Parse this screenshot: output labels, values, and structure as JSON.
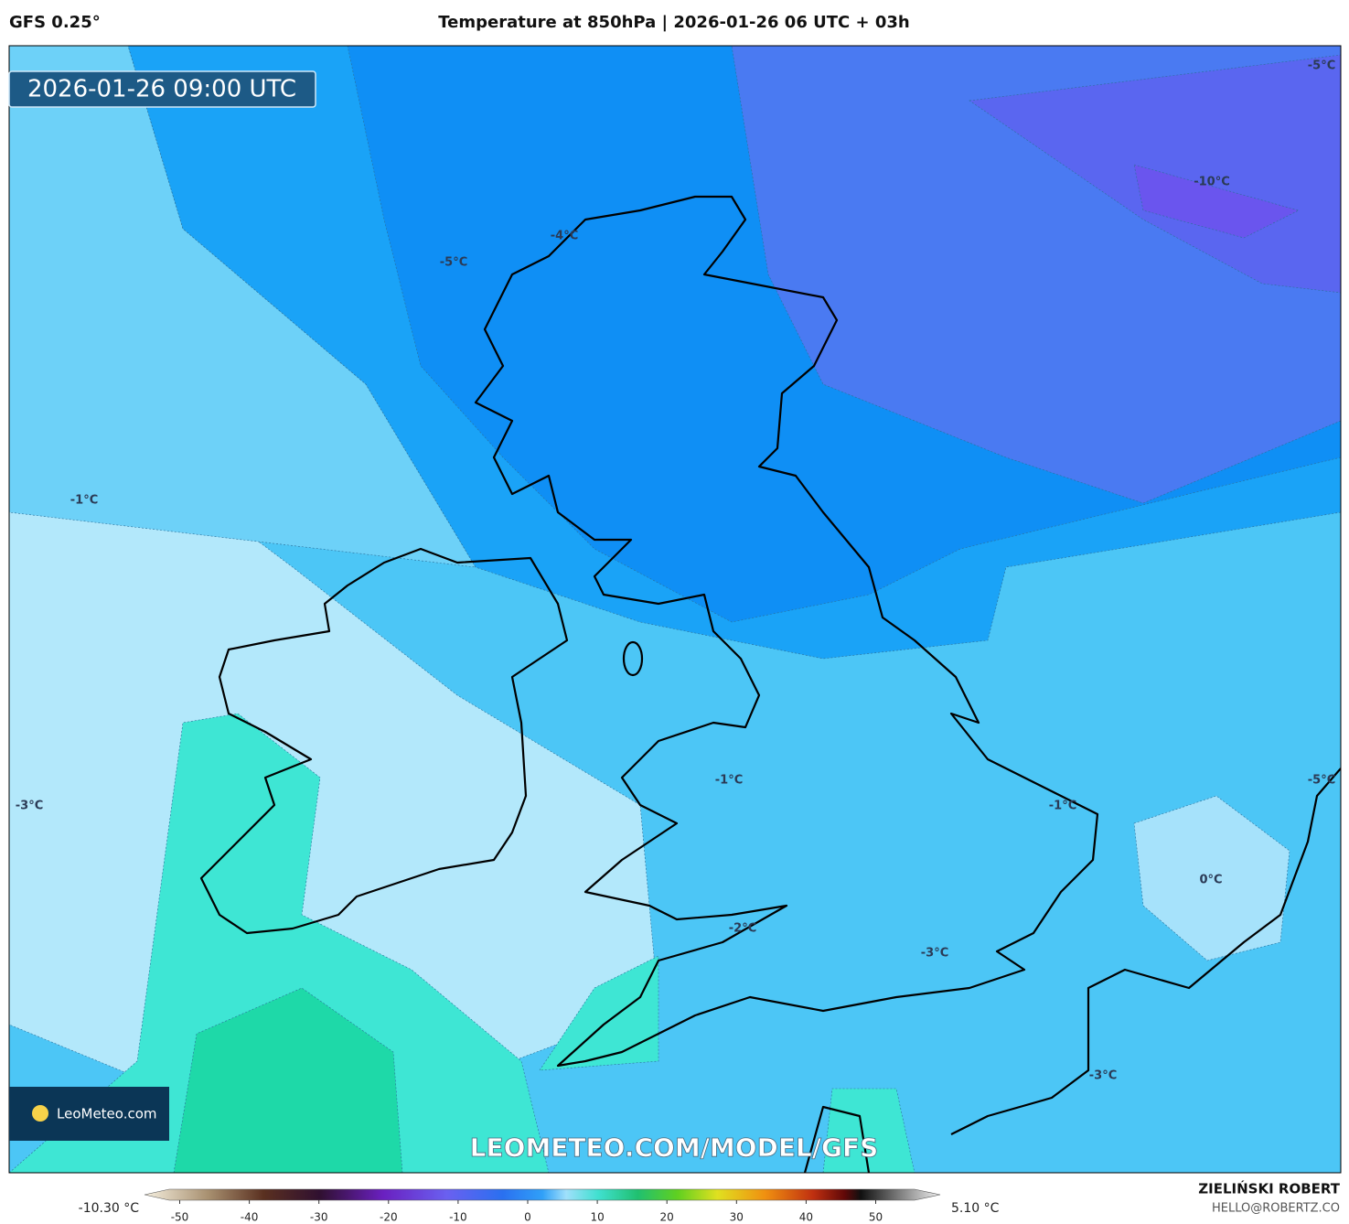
{
  "header": {
    "model": "GFS 0.25°",
    "title": "Temperature at 850hPa | 2026-01-26 06 UTC + 03h"
  },
  "map": {
    "valid_time": "2026-01-26 09:00 UTC",
    "contour_labels": [
      "-5°C",
      "-10°C",
      "-4°C",
      "-5°C",
      "-1°C",
      "-3°C",
      "-1°C",
      "-1°C",
      "0°C",
      "-5°C",
      "-2°C",
      "-3°C",
      "-3°C"
    ],
    "logo": "LeoMeteo.com",
    "watermark": "LEOMETEO.COM/MODEL/GFS"
  },
  "colorbar": {
    "min_label": "-10.30 °C",
    "max_label": "5.10 °C",
    "ticks": [
      -50,
      -40,
      -30,
      -20,
      -10,
      0,
      10,
      20,
      30,
      40,
      50
    ]
  },
  "footer": {
    "author": "ZIELIŃSKI ROBERT",
    "contact": "HELLO@ROBERTZ.CO"
  }
}
